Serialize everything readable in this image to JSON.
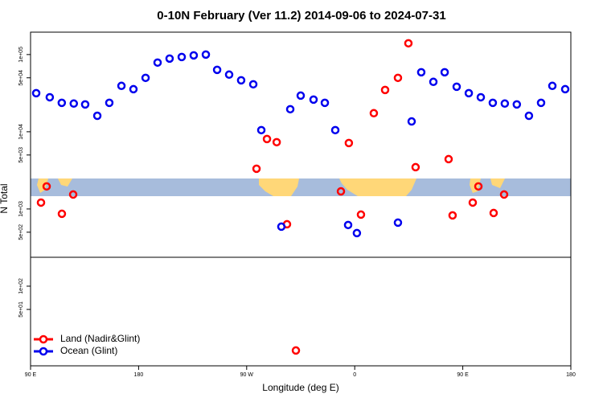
{
  "chart_data": {
    "type": "scatter",
    "title": "0-10N February (Ver 11.2)   2014-09-06 to 2024-07-31",
    "xlabel": "Longitude (deg E)",
    "ylabel": "N Total",
    "xlim": [
      90,
      540
    ],
    "xticks": [
      {
        "value": 90,
        "label": "90 E"
      },
      {
        "value": 180,
        "label": "180"
      },
      {
        "value": 270,
        "label": "90 W"
      },
      {
        "value": 360,
        "label": "0"
      },
      {
        "value": 450,
        "label": "90 E"
      },
      {
        "value": 540,
        "label": "180"
      }
    ],
    "ylim": [
      9.3,
      195000
    ],
    "log_y": true,
    "yticks": [
      {
        "value": 50,
        "label": "5e+01"
      },
      {
        "value": 100,
        "label": "1e+02"
      },
      {
        "value": 500,
        "label": "5e+02"
      },
      {
        "value": 1000,
        "label": "1e+03"
      },
      {
        "value": 5000,
        "label": "5e+03"
      },
      {
        "value": 10000,
        "label": "1e+04"
      },
      {
        "value": 50000,
        "label": "5e+04"
      },
      {
        "value": 100000,
        "label": "1e+05"
      }
    ],
    "legend": "bottom-left",
    "series": [
      {
        "name": "Land (Nadir&Glint)",
        "color": "#ff0000",
        "x": [
          98.7,
          103.4,
          116.1,
          125.5,
          278.2,
          286.9,
          295,
          303.6,
          311,
          348.5,
          355.1,
          365.2,
          375.9,
          385.3,
          396,
          404.7,
          410.7,
          438.2,
          441.5,
          458.3,
          463,
          475.7,
          484.4
        ],
        "values": [
          1210,
          1960,
          866,
          1540,
          3320,
          8060,
          7330,
          634,
          14.7,
          1690,
          7150,
          845,
          17400,
          34800,
          49900,
          140000,
          3480,
          4420,
          826,
          1210,
          1960,
          887,
          1540
        ]
      },
      {
        "name": "Ocean (Glint)",
        "color": "#0000ee",
        "x": [
          94.7,
          106,
          116,
          126,
          135.5,
          145.6,
          155.6,
          165.7,
          175.7,
          185.8,
          195.8,
          205.8,
          215.9,
          225.9,
          236,
          245.4,
          255.4,
          265.4,
          275.5,
          282.2,
          298.9,
          306.3,
          315,
          325.7,
          335.1,
          343.8,
          354.5,
          361.8,
          396,
          407.4,
          415.4,
          425.5,
          434.9,
          444.9,
          455,
          465,
          475,
          485,
          495,
          505.1,
          515.2,
          524.6,
          535.3
        ],
        "values": [
          31600,
          28000,
          23700,
          23200,
          22600,
          16100,
          23700,
          39300,
          35600,
          49900,
          78700,
          88700,
          93000,
          97600,
          100000,
          63400,
          55000,
          46400,
          41200,
          10500,
          590,
          19600,
          29400,
          26100,
          23700,
          10500,
          620,
          487,
          665,
          13600,
          59000,
          44300,
          59000,
          38300,
          31600,
          28000,
          23700,
          23200,
          22600,
          16100,
          23700,
          39300,
          35600
        ]
      }
    ]
  }
}
